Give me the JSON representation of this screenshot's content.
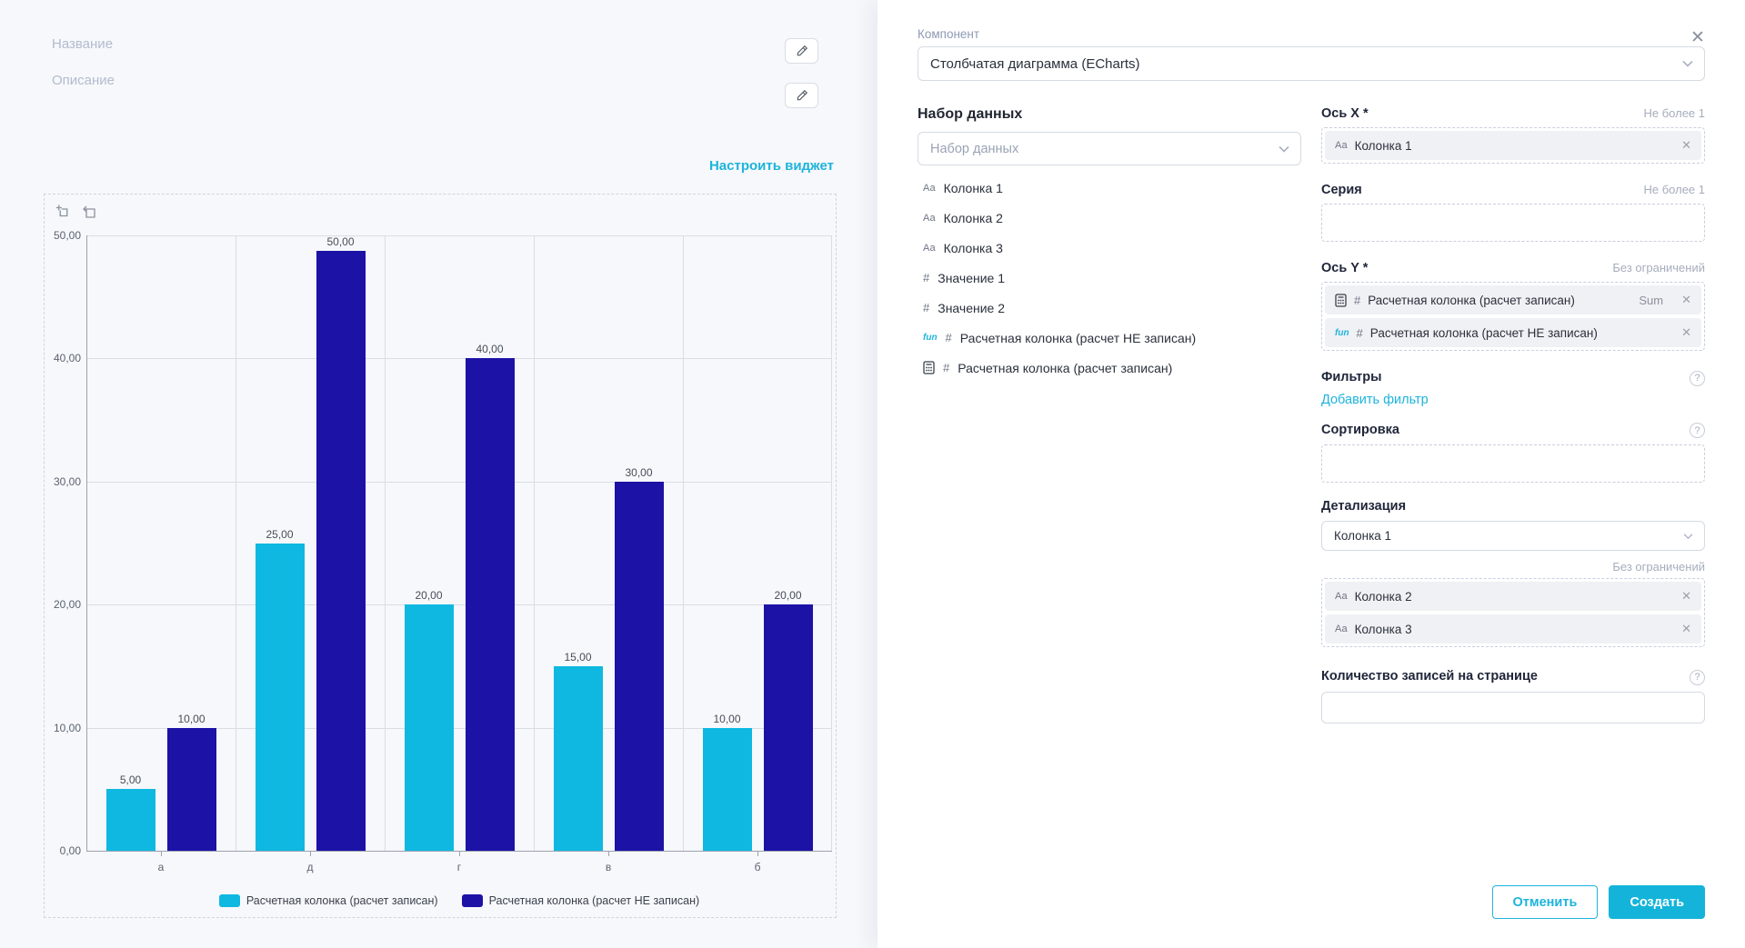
{
  "left_panel": {
    "name_placeholder": "Название",
    "description_placeholder": "Описание",
    "configure_widget_link": "Настроить виджет"
  },
  "chart_data": {
    "type": "bar",
    "categories": [
      "а",
      "д",
      "г",
      "в",
      "б"
    ],
    "series": [
      {
        "name": "Расчетная колонка (расчет записан)",
        "color": "#0eb8e0",
        "values": [
          5,
          25,
          20,
          15,
          10
        ],
        "value_labels": [
          "5,00",
          "25,00",
          "20,00",
          "15,00",
          "10,00"
        ]
      },
      {
        "name": "Расчетная колонка (расчет НЕ записан)",
        "color": "#1c12a6",
        "values": [
          10,
          50,
          40,
          30,
          20
        ],
        "value_labels": [
          "10,00",
          "50,00",
          "40,00",
          "30,00",
          "20,00"
        ]
      }
    ],
    "y_axis": {
      "min": 0,
      "max": 50,
      "ticks": [
        {
          "v": 0,
          "label": "0,00"
        },
        {
          "v": 10,
          "label": "10,00"
        },
        {
          "v": 20,
          "label": "20,00"
        },
        {
          "v": 30,
          "label": "30,00"
        },
        {
          "v": 40,
          "label": "40,00"
        },
        {
          "v": 50,
          "label": "50,00"
        }
      ]
    },
    "grid": true,
    "legend_position": "bottom"
  },
  "icon_glyphs": {
    "text": "Аа",
    "hash": "#",
    "fun": "fun"
  },
  "dialog": {
    "component": {
      "label": "Компонент",
      "value": "Столбчатая диаграмма (ECharts)"
    },
    "dataset": {
      "title": "Набор данных",
      "search_placeholder": "Набор данных",
      "items": [
        {
          "icons": [
            "text"
          ],
          "label": "Колонка 1"
        },
        {
          "icons": [
            "text"
          ],
          "label": "Колонка 2"
        },
        {
          "icons": [
            "text"
          ],
          "label": "Колонка 3"
        },
        {
          "icons": [
            "hash"
          ],
          "label": "Значение 1"
        },
        {
          "icons": [
            "hash"
          ],
          "label": "Значение 2"
        },
        {
          "icons": [
            "fun",
            "hash"
          ],
          "label": "Расчетная колонка (расчет НЕ записан)"
        },
        {
          "icons": [
            "calc",
            "hash"
          ],
          "label": "Расчетная колонка (расчет записан)"
        }
      ]
    },
    "x_axis": {
      "label": "Ось X *",
      "limit": "Не более 1",
      "tags": [
        {
          "icons": [
            "text"
          ],
          "label": "Колонка 1"
        }
      ]
    },
    "series_field": {
      "label": "Серия",
      "limit": "Не более 1"
    },
    "y_axis_field": {
      "label": "Ось Y *",
      "limit": "Без ограничений",
      "tags": [
        {
          "icons": [
            "calc",
            "hash"
          ],
          "label": "Расчетная колонка (расчет записан)",
          "aggregation": "Sum"
        },
        {
          "icons": [
            "fun",
            "hash"
          ],
          "label": "Расчетная колонка (расчет НЕ записан)"
        }
      ]
    },
    "filters": {
      "label": "Фильтры",
      "add_link": "Добавить фильтр"
    },
    "sorting": {
      "label": "Сортировка"
    },
    "detail": {
      "label": "Детализация",
      "select_value": "Колонка 1",
      "limit": "Без ограничений",
      "tags": [
        {
          "icons": [
            "text"
          ],
          "label": "Колонка 2"
        },
        {
          "icons": [
            "text"
          ],
          "label": "Колонка 3"
        }
      ]
    },
    "page_size": {
      "label": "Количество записей на странице"
    },
    "buttons": {
      "cancel": "Отменить",
      "create": "Создать"
    }
  }
}
